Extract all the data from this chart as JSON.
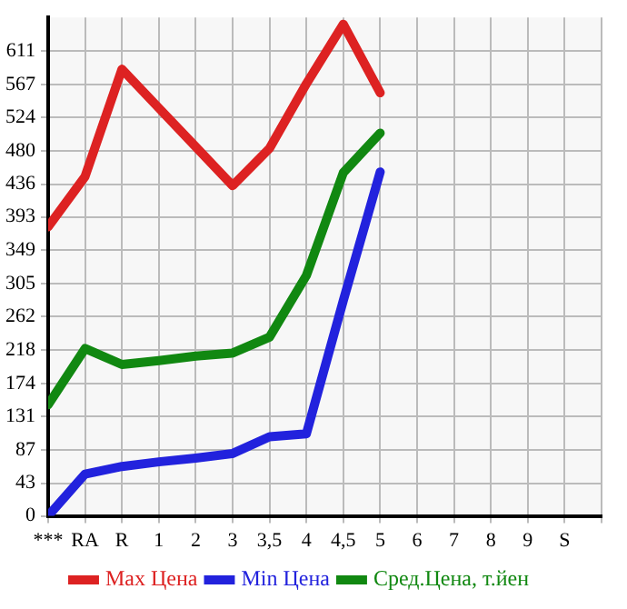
{
  "chart_data": {
    "type": "line",
    "categories": [
      "***",
      "RA",
      "R",
      "1",
      "2",
      "3",
      "3,5",
      "4",
      "4,5",
      "5",
      "6",
      "7",
      "8",
      "9",
      "S"
    ],
    "series": [
      {
        "name": "Max Цена",
        "color": "#dd2222",
        "values": [
          380,
          446,
          587,
          536,
          485,
          434,
          483,
          568,
          646,
          556,
          null,
          null,
          null,
          null,
          null
        ]
      },
      {
        "name": "Min Цена",
        "color": "#2222dd",
        "values": [
          0,
          55,
          65,
          71,
          76,
          82,
          104,
          108,
          283,
          452,
          null,
          null,
          null,
          null,
          null
        ]
      },
      {
        "name": "Сред.Цена, т.йен",
        "color": "#118811",
        "values": [
          146,
          220,
          199,
          204,
          210,
          214,
          235,
          316,
          451,
          503,
          null,
          null,
          null,
          null,
          null
        ]
      }
    ],
    "ylim": [
      0,
      655
    ],
    "yticks": [
      0,
      43,
      87,
      131,
      174,
      218,
      262,
      305,
      349,
      393,
      436,
      480,
      524,
      567,
      611
    ],
    "grid": true,
    "legend": "bottom",
    "marker": "none",
    "line_style": "solid"
  }
}
